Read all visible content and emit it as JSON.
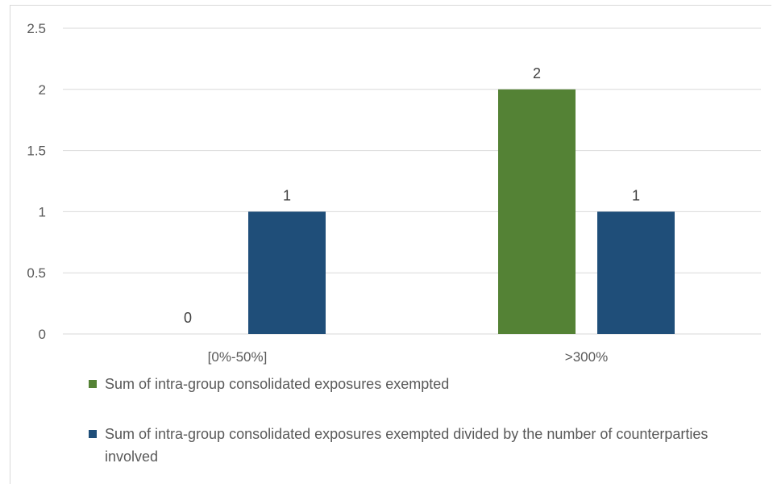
{
  "chart_data": {
    "type": "bar",
    "categories": [
      "[0%-50%]",
      ">300%"
    ],
    "series": [
      {
        "name": "Sum of intra-group consolidated exposures exempted",
        "color": "#548235",
        "values": [
          0,
          2
        ]
      },
      {
        "name": "Sum of intra-group consolidated exposures exempted divided by the number of counterparties involved",
        "color": "#1f4e79",
        "values": [
          1,
          1
        ]
      }
    ],
    "ylim": [
      0,
      2.5
    ],
    "yticks": [
      "0",
      "0.5",
      "1",
      "1.5",
      "2",
      "2.5"
    ],
    "grid": true,
    "legend_position": "bottom-left",
    "data_labels": true
  }
}
